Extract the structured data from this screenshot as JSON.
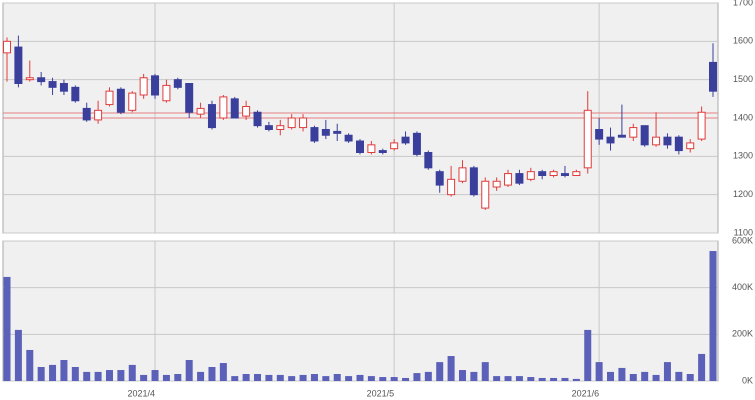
{
  "chart_data": [
    {
      "type": "candlestick",
      "open": [
        1570,
        1585,
        1500,
        1505,
        1495,
        1490,
        1480,
        1425,
        1395,
        1435,
        1475,
        1420,
        1460,
        1510,
        1445,
        1500,
        1490,
        1410,
        1435,
        1400,
        1450,
        1405,
        1415,
        1380,
        1370,
        1375,
        1375,
        1375,
        1370,
        1365,
        1355,
        1340,
        1310,
        1315,
        1320,
        1350,
        1360,
        1310,
        1260,
        1200,
        1235,
        1270,
        1165,
        1220,
        1225,
        1255,
        1240,
        1260,
        1250,
        1255,
        1250,
        1270,
        1370,
        1350,
        1355,
        1350,
        1380,
        1330,
        1350,
        1350,
        1320,
        1345,
        1545
      ],
      "high": [
        1610,
        1615,
        1550,
        1520,
        1505,
        1500,
        1485,
        1440,
        1445,
        1480,
        1480,
        1470,
        1515,
        1515,
        1500,
        1505,
        1490,
        1440,
        1445,
        1460,
        1455,
        1445,
        1420,
        1390,
        1395,
        1410,
        1410,
        1380,
        1395,
        1385,
        1360,
        1345,
        1340,
        1320,
        1345,
        1365,
        1365,
        1315,
        1265,
        1275,
        1290,
        1275,
        1245,
        1245,
        1265,
        1265,
        1270,
        1265,
        1265,
        1275,
        1265,
        1470,
        1400,
        1375,
        1435,
        1385,
        1380,
        1415,
        1360,
        1355,
        1345,
        1430,
        1595
      ],
      "low": [
        1495,
        1480,
        1495,
        1485,
        1460,
        1460,
        1440,
        1390,
        1385,
        1430,
        1410,
        1415,
        1450,
        1450,
        1440,
        1475,
        1400,
        1400,
        1370,
        1395,
        1400,
        1395,
        1375,
        1365,
        1355,
        1370,
        1365,
        1335,
        1345,
        1340,
        1335,
        1305,
        1305,
        1305,
        1315,
        1330,
        1300,
        1265,
        1205,
        1195,
        1230,
        1195,
        1160,
        1210,
        1220,
        1225,
        1235,
        1240,
        1245,
        1245,
        1250,
        1255,
        1330,
        1315,
        1350,
        1340,
        1325,
        1325,
        1320,
        1305,
        1310,
        1340,
        1455
      ],
      "close": [
        1600,
        1490,
        1505,
        1495,
        1480,
        1470,
        1445,
        1395,
        1420,
        1470,
        1415,
        1465,
        1505,
        1460,
        1485,
        1480,
        1415,
        1425,
        1375,
        1455,
        1400,
        1430,
        1380,
        1370,
        1380,
        1400,
        1400,
        1340,
        1355,
        1360,
        1340,
        1310,
        1330,
        1310,
        1335,
        1335,
        1305,
        1270,
        1225,
        1240,
        1270,
        1200,
        1235,
        1235,
        1255,
        1230,
        1260,
        1250,
        1260,
        1250,
        1260,
        1420,
        1345,
        1335,
        1350,
        1375,
        1330,
        1350,
        1330,
        1315,
        1335,
        1415,
        1470
      ],
      "up_color": "#e03c3c",
      "down_color": "#3b3f9c",
      "hlines": [
        1413,
        1400
      ],
      "hline_color": "#e58080",
      "ylim": [
        1100,
        1700
      ],
      "yticks": [
        1100,
        1200,
        1300,
        1400,
        1500,
        1600,
        1700
      ],
      "grid": true
    },
    {
      "type": "bar",
      "categories": [
        null,
        null,
        null,
        null,
        null,
        null,
        null,
        null,
        null,
        null,
        null,
        null,
        null,
        "2021/4",
        null,
        null,
        null,
        null,
        null,
        null,
        null,
        null,
        null,
        null,
        null,
        null,
        null,
        null,
        null,
        null,
        null,
        null,
        null,
        null,
        "2021/5",
        null,
        null,
        null,
        null,
        null,
        null,
        null,
        null,
        null,
        null,
        null,
        null,
        null,
        null,
        null,
        null,
        null,
        "2021/6",
        null,
        null,
        null,
        null,
        null,
        null,
        null,
        null,
        null,
        null
      ],
      "values": [
        446000,
        219000,
        133000,
        60000,
        69000,
        90000,
        60000,
        39000,
        39000,
        47000,
        47000,
        69000,
        26000,
        47000,
        26000,
        30000,
        90000,
        39000,
        60000,
        77000,
        21000,
        30000,
        30000,
        26000,
        26000,
        21000,
        26000,
        30000,
        21000,
        30000,
        21000,
        26000,
        21000,
        17000,
        17000,
        13000,
        34000,
        39000,
        81000,
        107000,
        47000,
        39000,
        81000,
        21000,
        21000,
        21000,
        17000,
        13000,
        13000,
        13000,
        9000,
        219000,
        81000,
        39000,
        56000,
        30000,
        39000,
        26000,
        81000,
        39000,
        30000,
        116000,
        557000
      ],
      "color": "#5b60b8",
      "ylim": [
        0,
        600000
      ],
      "yticks": [
        {
          "value": 0,
          "label": "0K"
        },
        {
          "value": 200000,
          "label": "200K"
        },
        {
          "value": 400000,
          "label": "400K"
        },
        {
          "value": 600000,
          "label": "600K"
        }
      ],
      "grid": true
    }
  ]
}
